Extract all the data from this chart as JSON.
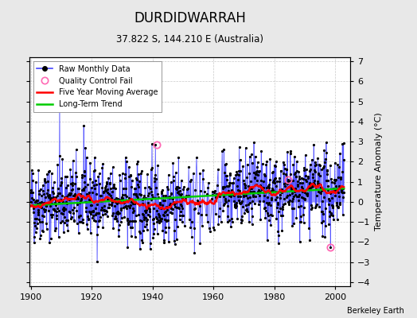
{
  "title": "DURDIDWARRAH",
  "subtitle": "37.822 S, 144.210 E (Australia)",
  "attribution": "Berkeley Earth",
  "ylabel": "Temperature Anomaly (°C)",
  "xlim": [
    1899.5,
    2005
  ],
  "ylim": [
    -4.2,
    7.2
  ],
  "yticks": [
    -4,
    -3,
    -2,
    -1,
    0,
    1,
    2,
    3,
    4,
    5,
    6,
    7
  ],
  "xticks": [
    1900,
    1920,
    1940,
    1960,
    1980,
    2000
  ],
  "bg_color": "#e8e8e8",
  "plot_bg": "#ffffff",
  "line_color": "#4444ff",
  "stem_color": "#6666ff",
  "moving_avg_color": "#ff0000",
  "trend_color": "#00cc00",
  "qc_color": "#ff69b4",
  "seed": 42,
  "n_years": 103,
  "start_year": 1900,
  "qc_fail_times": [
    1941.5,
    1984.5,
    1998.5
  ],
  "qc_fail_vals": [
    2.85,
    1.1,
    -2.25
  ]
}
